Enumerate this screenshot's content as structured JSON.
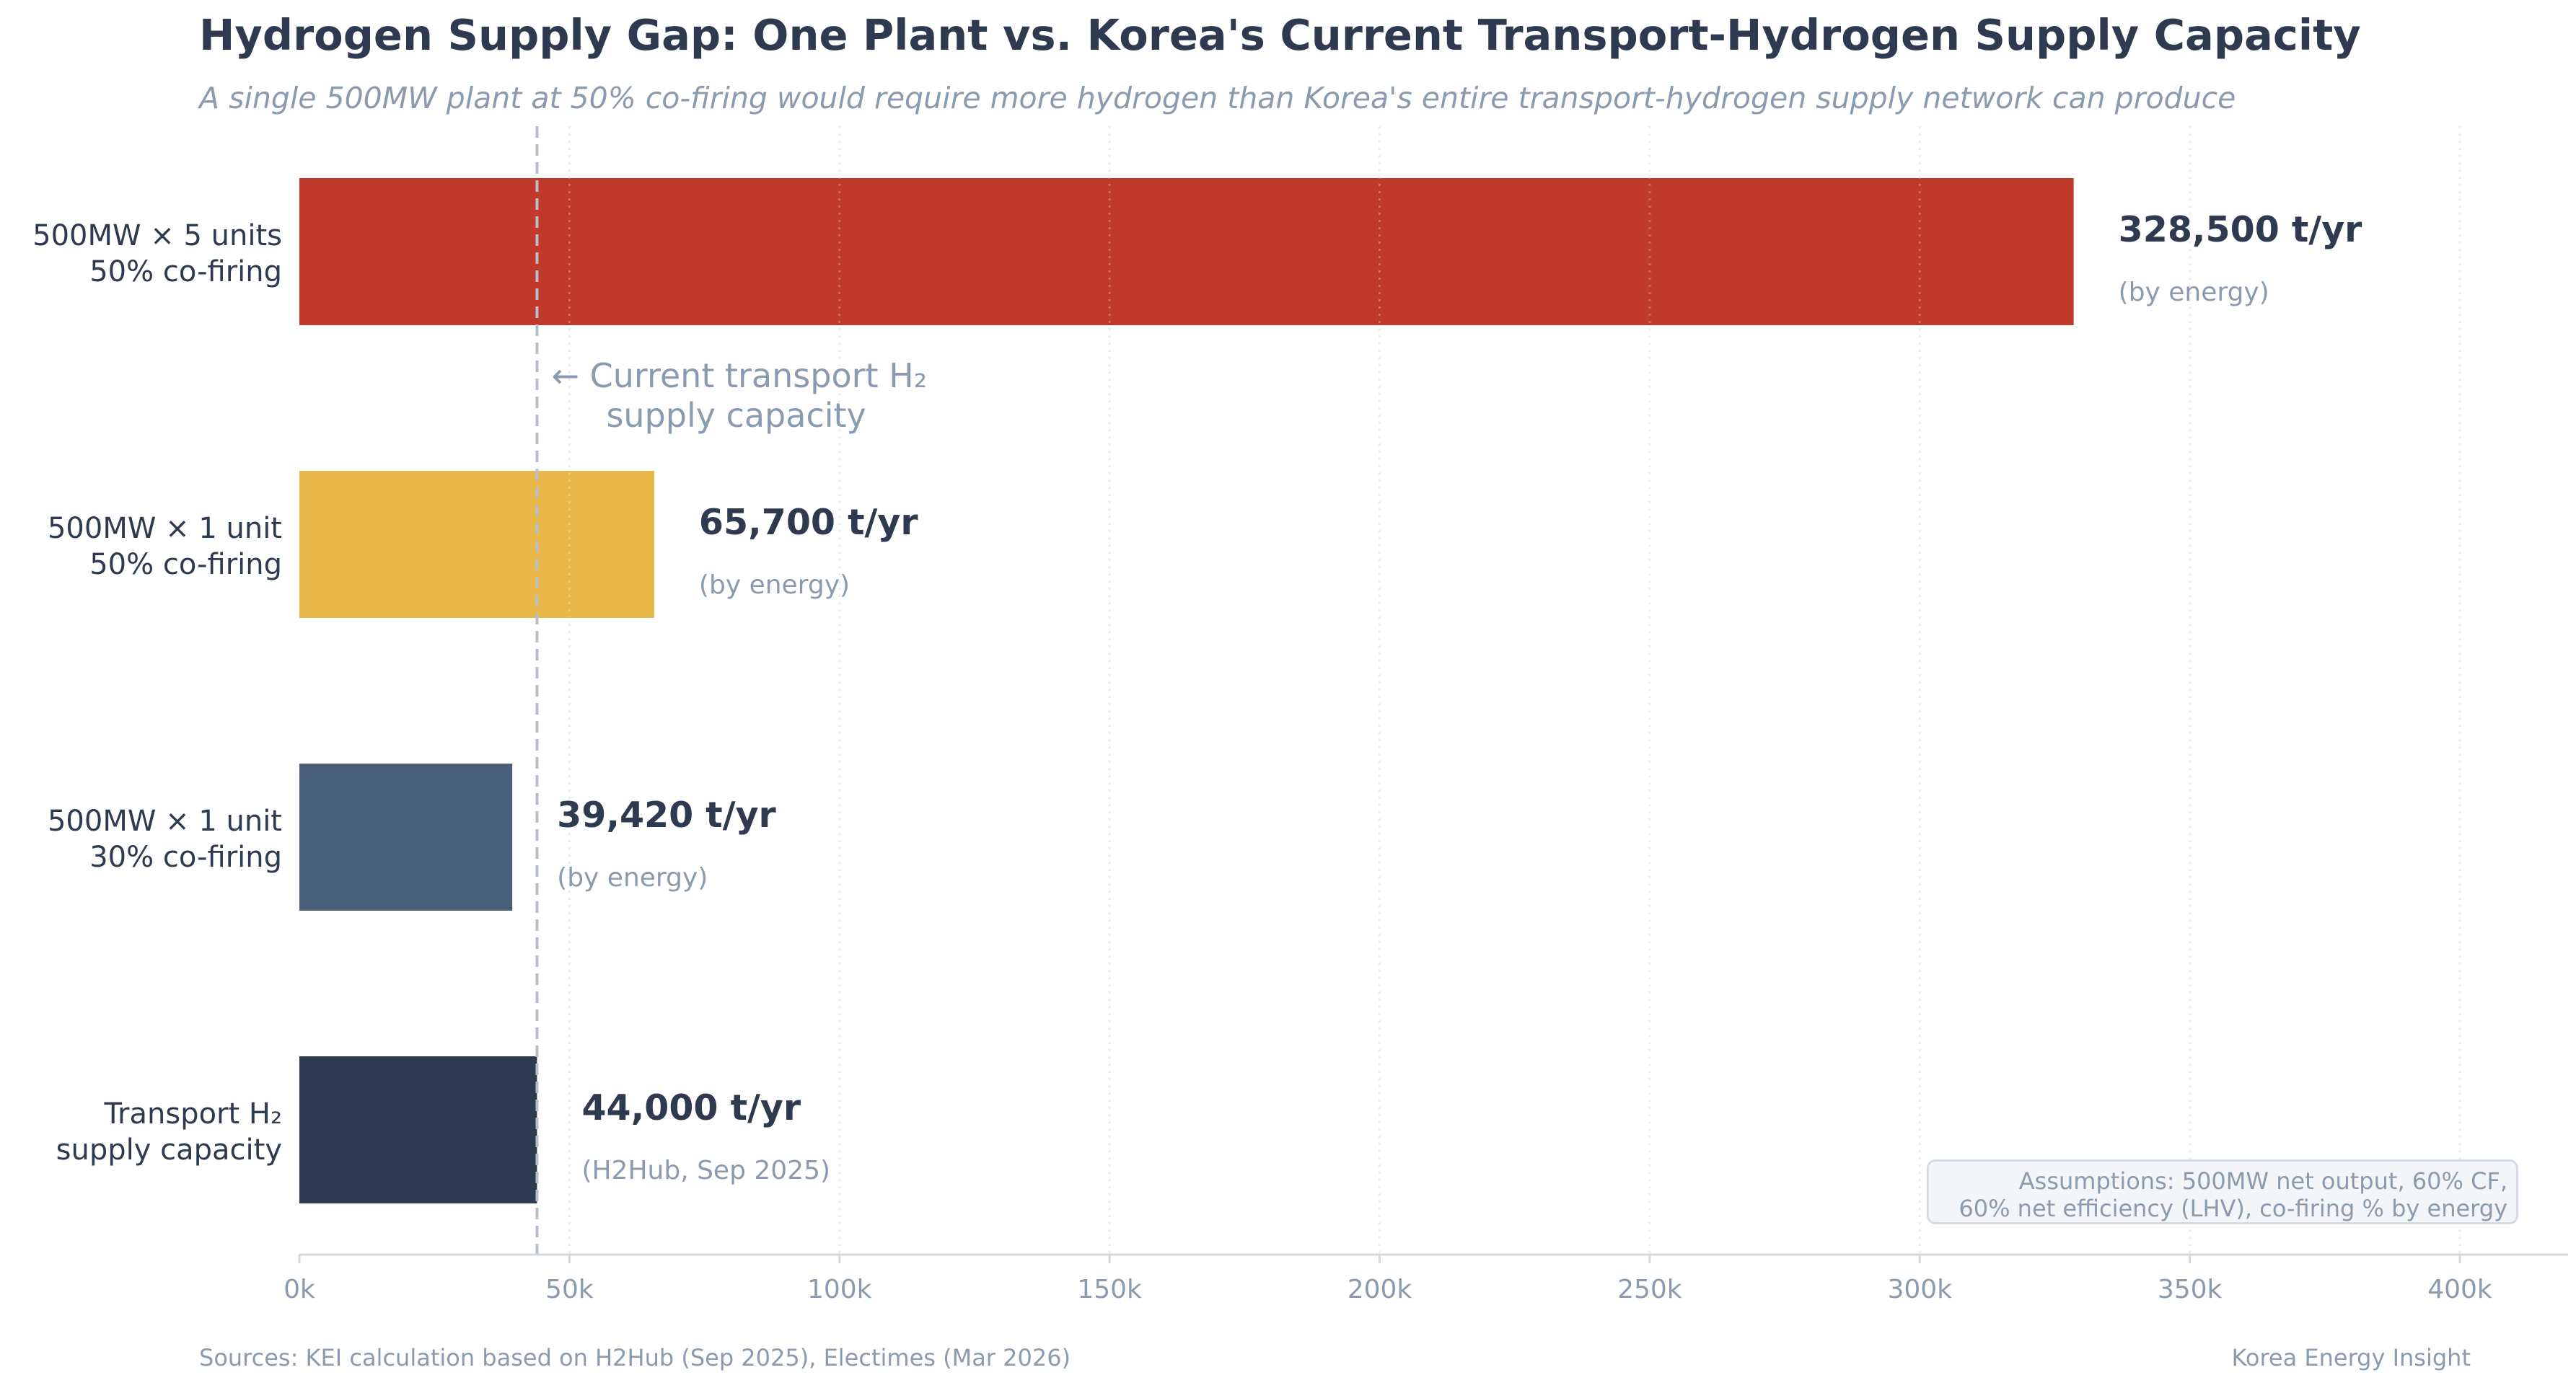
{
  "chart_data": {
    "type": "bar",
    "orientation": "horizontal",
    "title": "Hydrogen Supply Gap: One Plant vs. Korea's Current Transport-Hydrogen Supply Capacity",
    "subtitle": "A single 500MW plant at 50% co-firing would require more hydrogen than Korea's entire transport-hydrogen supply network can produce",
    "categories": [
      [
        "500MW × 5 units",
        "50% co-firing"
      ],
      [
        "500MW × 1 unit",
        "50% co-firing"
      ],
      [
        "500MW × 1 unit",
        "30% co-firing"
      ],
      [
        "Transport H₂",
        "supply capacity"
      ]
    ],
    "values": [
      328500,
      65700,
      39420,
      44000
    ],
    "value_labels": [
      "328,500 t/yr",
      "65,700 t/yr",
      "39,420 t/yr",
      "44,000 t/yr"
    ],
    "sub_labels": [
      "(by energy)",
      "(by energy)",
      "(by energy)",
      "(H2Hub, Sep 2025)"
    ],
    "colors": [
      "#c0392b",
      "#e8b84b",
      "#4a5f7c",
      "#2d3a50"
    ],
    "xlim": [
      0,
      420000
    ],
    "xticks": [
      0,
      50000,
      100000,
      150000,
      200000,
      250000,
      300000,
      350000,
      400000
    ],
    "xtick_labels": [
      "0k",
      "50k",
      "100k",
      "150k",
      "200k",
      "250k",
      "300k",
      "350k",
      "400k"
    ],
    "reference_line": {
      "value": 44000,
      "label": [
        "← Current transport H₂",
        "supply capacity"
      ]
    },
    "grid": "vertical dotted",
    "assumptions": [
      "Assumptions: 500MW net output, 60% CF,",
      "60% net efficiency (LHV), co-firing % by energy"
    ]
  },
  "footer": {
    "source": "Sources: KEI calculation based on H2Hub (Sep 2025), Electimes (Mar 2026)",
    "brand": "Korea Energy Insight"
  }
}
